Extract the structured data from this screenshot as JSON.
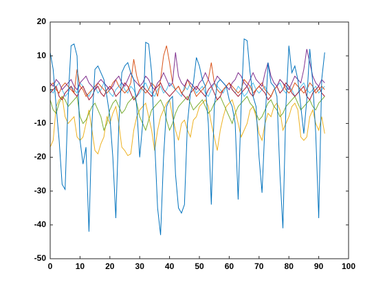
{
  "chart_data": {
    "type": "line",
    "x": [
      0,
      1,
      2,
      3,
      4,
      5,
      6,
      7,
      8,
      9,
      10,
      11,
      12,
      13,
      14,
      15,
      16,
      17,
      18,
      19,
      20,
      21,
      22,
      23,
      24,
      25,
      26,
      27,
      28,
      29,
      30,
      31,
      32,
      33,
      34,
      35,
      36,
      37,
      38,
      39,
      40,
      41,
      42,
      43,
      44,
      45,
      46,
      47,
      48,
      49,
      50,
      51,
      52,
      53,
      54,
      55,
      56,
      57,
      58,
      59,
      60,
      61,
      62,
      63,
      64,
      65,
      66,
      67,
      68,
      69,
      70,
      71,
      72,
      73,
      74,
      75,
      76,
      77,
      78,
      79,
      80,
      81,
      82,
      83,
      84,
      85,
      86,
      87,
      88,
      89,
      90,
      91,
      92
    ],
    "series": [
      {
        "color": "#EDB120",
        "values": [
          -17,
          -15,
          -5,
          -3,
          -2,
          -8,
          -10,
          -9,
          -8,
          -14,
          -15,
          -14,
          -10,
          -6,
          -12,
          -18,
          -19,
          -16,
          -14,
          -8,
          -10,
          -7,
          -5,
          -10,
          -17,
          -18,
          -19.5,
          -19,
          -12,
          -8,
          -6,
          -5,
          -4,
          -8,
          -12,
          -18,
          -12,
          -8,
          -6,
          -4,
          -3,
          -8,
          -12,
          -15,
          -10,
          -9,
          -12,
          -14,
          -9,
          -8,
          -5,
          -4,
          -3,
          -5,
          -10,
          -14,
          -18,
          -12,
          -8,
          -5,
          -4,
          -3,
          -6,
          -10,
          -14,
          -12,
          -10,
          -6,
          -5,
          -8,
          -13,
          -15,
          -10,
          -7,
          -8,
          -5,
          -4,
          -6,
          -12,
          -10,
          -8,
          -5,
          -4,
          -6,
          -14,
          -15,
          -14,
          -8,
          -6,
          -10,
          -12,
          -8,
          -13
        ]
      },
      {
        "color": "#77AC30",
        "values": [
          -3,
          -6,
          -7,
          -4,
          -2,
          -3,
          -5,
          -4,
          -3,
          -2,
          -8,
          -10,
          -9,
          -7,
          -5,
          -4,
          -6,
          -8,
          -12,
          -10,
          -6,
          -4,
          -3,
          -5,
          -7,
          -6,
          -4,
          -3,
          -2,
          -4,
          -8,
          -10,
          -12,
          -9,
          -6,
          -5,
          -4,
          -3,
          -5,
          -9,
          -12,
          -10,
          -7,
          -5,
          -4,
          -3,
          -2,
          -4,
          -6,
          -5,
          -4,
          -3,
          -5,
          -7,
          -6,
          -4,
          -3,
          -2,
          -4,
          -6,
          -8,
          -10,
          -7,
          -5,
          -4,
          -3,
          -2,
          -4,
          -5,
          -7,
          -9,
          -8,
          -6,
          -4,
          -3,
          -5,
          -6,
          -8,
          -7,
          -5,
          -4,
          -3,
          -2,
          -4,
          -6,
          -5,
          -4,
          -3,
          -5,
          -6,
          -4,
          -3,
          -2
        ]
      },
      {
        "color": "#4DBEEE",
        "values": [
          0,
          -1,
          1,
          2,
          0,
          -2,
          -1,
          1,
          0,
          -1,
          2,
          1,
          -1,
          -2,
          0,
          1,
          -1,
          0,
          2,
          1,
          -1,
          -2,
          0,
          1,
          2,
          0,
          -1,
          1,
          0,
          -2,
          -1,
          1,
          2,
          0,
          -1,
          -2,
          0,
          1,
          -1,
          0,
          2,
          1,
          0,
          -1,
          -2,
          1,
          0,
          2,
          1,
          -1,
          0,
          1,
          -1,
          -2,
          0,
          2,
          1,
          0,
          -1,
          1,
          2,
          0,
          -1,
          1,
          0,
          -2,
          -1,
          1,
          2,
          0,
          -1,
          0,
          1,
          -1,
          -2,
          0,
          1,
          2,
          0,
          -1,
          1,
          0,
          -2,
          -1,
          1,
          2,
          0,
          -1,
          0,
          1,
          -1,
          0,
          1
        ]
      },
      {
        "color": "#A2142F",
        "values": [
          -1,
          0,
          1,
          -2,
          -3,
          -1,
          0,
          1,
          -1,
          -2,
          0,
          1,
          -1,
          -3,
          -2,
          0,
          1,
          -1,
          -2,
          0,
          1,
          0,
          -2,
          -1,
          0,
          2,
          1,
          -1,
          -3,
          -2,
          0,
          1,
          0,
          -1,
          -2,
          0,
          1,
          2,
          0,
          -1,
          -2,
          -1,
          0,
          1,
          -1,
          -2,
          -3,
          -1,
          0,
          1,
          0,
          -1,
          -2,
          0,
          1,
          -1,
          -3,
          -2,
          0,
          1,
          2,
          0,
          -1,
          -2,
          -1,
          0,
          1,
          -1,
          -2,
          0,
          1,
          0,
          -1,
          -3,
          -2,
          0,
          1,
          -1,
          0,
          2,
          1,
          -1,
          -2,
          -1,
          0,
          1,
          -2,
          -3,
          -1,
          0,
          1,
          -1,
          -2
        ]
      },
      {
        "color": "#D95319",
        "values": [
          1,
          2,
          0,
          -1,
          1,
          2,
          1,
          0,
          -1,
          6,
          1,
          0,
          -2,
          -1,
          0,
          1,
          2,
          1,
          0,
          -1,
          0,
          2,
          3,
          1,
          0,
          -1,
          0,
          2,
          9,
          4,
          1,
          0,
          -1,
          0,
          2,
          1,
          -2,
          3,
          10,
          13,
          8,
          2,
          0,
          1,
          -1,
          0,
          3,
          1,
          0,
          -2,
          -1,
          0,
          1,
          3,
          8,
          2,
          0,
          -1,
          0,
          1,
          2,
          1,
          0,
          -1,
          0,
          3,
          2,
          1,
          -1,
          0,
          1,
          2,
          0,
          -1,
          -2,
          0,
          1,
          3,
          2,
          0,
          -1,
          0,
          2,
          1,
          0,
          -1,
          0,
          2,
          1,
          -1,
          0,
          1,
          0
        ]
      },
      {
        "color": "#7E2F8E",
        "values": [
          2,
          1,
          3,
          2,
          0,
          1,
          2,
          3,
          1,
          0,
          2,
          3,
          4,
          2,
          1,
          0,
          2,
          3,
          2,
          1,
          0,
          1,
          3,
          4,
          2,
          1,
          3,
          5,
          3,
          2,
          1,
          2,
          4,
          3,
          1,
          0,
          2,
          3,
          5,
          3,
          1,
          2,
          11,
          4,
          2,
          1,
          3,
          2,
          1,
          0,
          2,
          3,
          5,
          3,
          1,
          2,
          4,
          3,
          2,
          1,
          0,
          2,
          3,
          5,
          4,
          2,
          1,
          3,
          5,
          3,
          2,
          1,
          5,
          8,
          4,
          2,
          1,
          3,
          2,
          1,
          0,
          2,
          4,
          3,
          2,
          6,
          12,
          8,
          4,
          2,
          1,
          3,
          2
        ]
      },
      {
        "color": "#0072BD",
        "values": [
          11,
          6,
          -5,
          -15,
          -28,
          -29.5,
          -3,
          13,
          13.5,
          10,
          -15,
          -22,
          -17,
          -42,
          -10,
          6,
          7,
          5,
          3,
          -2,
          -8,
          -20,
          -38,
          -10,
          5,
          7,
          8,
          5,
          3,
          -5,
          -20,
          -10,
          14,
          13.5,
          5,
          -15,
          -35,
          -43,
          -20,
          -5,
          -3,
          -2,
          -25,
          -35,
          -36.5,
          -34,
          -10,
          -1,
          2,
          9.5,
          7,
          3,
          1,
          -10,
          -34,
          -5,
          2,
          3,
          2,
          1,
          -3,
          -5,
          -10,
          -32.5,
          -5,
          15,
          14.5,
          5,
          -2,
          -5,
          -20,
          -30.5,
          -10,
          8,
          2,
          1,
          -2,
          -25,
          -41,
          -5,
          13,
          5,
          7,
          3,
          -5,
          -13,
          -3,
          12,
          2,
          -13,
          -38,
          3,
          11
        ]
      }
    ],
    "xlim": [
      0,
      100
    ],
    "xticks": [
      0,
      10,
      20,
      30,
      40,
      50,
      60,
      70,
      80,
      90,
      100
    ],
    "ylim": [
      -50,
      20
    ],
    "yticks": [
      -50,
      -40,
      -30,
      -20,
      -10,
      0,
      10,
      20
    ],
    "grid": false
  }
}
